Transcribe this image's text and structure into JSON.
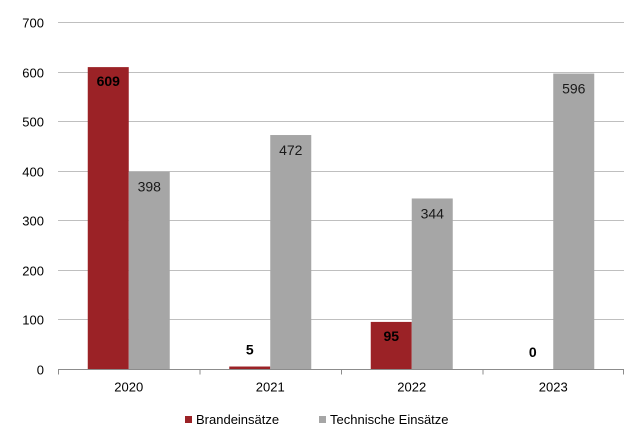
{
  "chart_data": {
    "type": "bar",
    "title": "",
    "xlabel": "",
    "ylabel": "",
    "categories": [
      "2020",
      "2021",
      "2022",
      "2023"
    ],
    "series": [
      {
        "name": "Brandeinsätze",
        "values": [
          609,
          5,
          95,
          0
        ],
        "color": "#9b2226"
      },
      {
        "name": "Technische Einsätze",
        "values": [
          398,
          472,
          344,
          596
        ],
        "color": "#a6a6a6"
      }
    ],
    "ylim": [
      0,
      700
    ],
    "yticks": [
      0,
      100,
      200,
      300,
      400,
      500,
      600,
      700
    ],
    "grid": true,
    "legend": "bottom",
    "data_labels": true
  }
}
